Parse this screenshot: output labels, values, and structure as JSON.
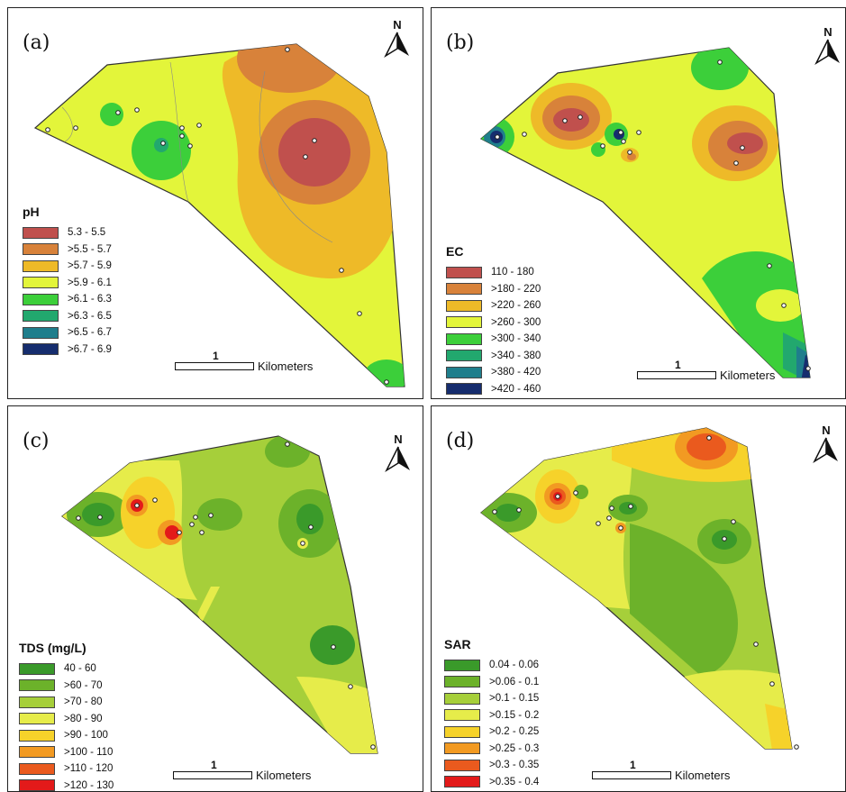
{
  "panels": {
    "a": {
      "label": "(a)",
      "legend_title": "pH",
      "classes": [
        {
          "range": "5.3 - 5.5",
          "color": "#c0504d"
        },
        {
          "range": ">5.5 - 5.7",
          "color": "#d8823a"
        },
        {
          "range": ">5.7 - 5.9",
          "color": "#eeba28"
        },
        {
          "range": ">5.9 - 6.1",
          "color": "#e3f53a"
        },
        {
          "range": ">6.1 - 6.3",
          "color": "#3ccf3a"
        },
        {
          "range": ">6.3 - 6.5",
          "color": "#22a86e"
        },
        {
          "range": ">6.5 - 6.7",
          "color": "#1f7e8c"
        },
        {
          "range": ">6.7 - 6.9",
          "color": "#162d6e"
        }
      ],
      "scale_value": "1",
      "scale_unit": "Kilometers",
      "north": "N"
    },
    "b": {
      "label": "(b)",
      "legend_title": "EC",
      "classes": [
        {
          "range": "110 - 180",
          "color": "#c0504d"
        },
        {
          "range": ">180 - 220",
          "color": "#d8823a"
        },
        {
          "range": ">220 - 260",
          "color": "#eeba28"
        },
        {
          "range": ">260 - 300",
          "color": "#e3f53a"
        },
        {
          "range": ">300 - 340",
          "color": "#3ccf3a"
        },
        {
          "range": ">340 - 380",
          "color": "#22a86e"
        },
        {
          "range": ">380 - 420",
          "color": "#1f7e8c"
        },
        {
          "range": ">420 - 460",
          "color": "#162d6e"
        }
      ],
      "scale_value": "1",
      "scale_unit": "Kilometers",
      "north": "N"
    },
    "c": {
      "label": "(c)",
      "legend_title": "TDS (mg/L)",
      "classes": [
        {
          "range": "40 - 60",
          "color": "#3a9a2a"
        },
        {
          "range": ">60 - 70",
          "color": "#6cb22a"
        },
        {
          "range": ">70 - 80",
          "color": "#a6cf3a"
        },
        {
          "range": ">80 - 90",
          "color": "#e6ec4a"
        },
        {
          "range": ">90 - 100",
          "color": "#f6d22a"
        },
        {
          "range": ">100 - 110",
          "color": "#f29a22"
        },
        {
          "range": ">110 - 120",
          "color": "#ea5a1e"
        },
        {
          "range": ">120 - 130",
          "color": "#e31a1a"
        }
      ],
      "scale_value": "1",
      "scale_unit": "Kilometers",
      "north": "N"
    },
    "d": {
      "label": "(d)",
      "legend_title": "SAR",
      "classes": [
        {
          "range": "0.04 - 0.06",
          "color": "#3a9a2a"
        },
        {
          "range": ">0.06 - 0.1",
          "color": "#6cb22a"
        },
        {
          "range": ">0.1 - 0.15",
          "color": "#a6cf3a"
        },
        {
          "range": ">0.15 - 0.2",
          "color": "#e6ec4a"
        },
        {
          "range": ">0.2 - 0.25",
          "color": "#f6d22a"
        },
        {
          "range": ">0.25 - 0.3",
          "color": "#f29a22"
        },
        {
          "range": ">0.3 - 0.35",
          "color": "#ea5a1e"
        },
        {
          "range": ">0.35 - 0.4",
          "color": "#e31a1a"
        }
      ],
      "scale_value": "1",
      "scale_unit": "Kilometers",
      "north": "N"
    }
  }
}
